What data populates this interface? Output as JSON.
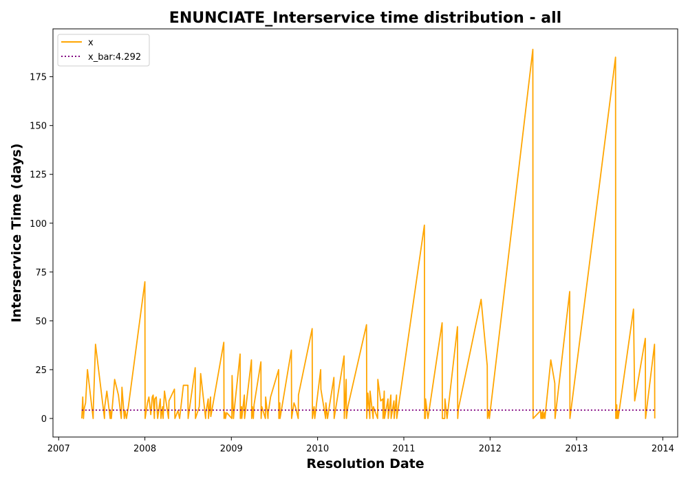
{
  "chart_data": {
    "type": "line",
    "title": "ENUNCIATE_Interservice time distribution - all",
    "xlabel": "Resolution Date",
    "ylabel": "Interservice Time (days)",
    "x_ticks": [
      "2007",
      "2008",
      "2009",
      "2010",
      "2011",
      "2012",
      "2013",
      "2014"
    ],
    "y_ticks": [
      0,
      25,
      50,
      75,
      100,
      125,
      150,
      175
    ],
    "xlim": [
      "2006-12-08",
      "2014-03-05"
    ],
    "ylim": [
      -9.5,
      199.5
    ],
    "legend_position": "upper left",
    "series": [
      {
        "name": "x",
        "color": "#ffa500",
        "style": "solid",
        "x": [
          "2007-04-09",
          "2007-04-13",
          "2007-04-16",
          "2007-04-19",
          "2007-04-25",
          "2007-05-03",
          "2007-05-27",
          "2007-05-28",
          "2007-06-06",
          "2007-07-14",
          "2007-07-15",
          "2007-07-24",
          "2007-08-07",
          "2007-08-08",
          "2007-08-12",
          "2007-08-26",
          "2007-09-11",
          "2007-09-23",
          "2007-09-26",
          "2007-10-06",
          "2007-10-09",
          "2007-10-15",
          "2007-10-23",
          "2008-01-01",
          "2008-01-02",
          "2008-01-12",
          "2008-01-18",
          "2008-01-26",
          "2008-02-01",
          "2008-02-05",
          "2008-02-10",
          "2008-02-12",
          "2008-02-18",
          "2008-02-24",
          "2008-03-06",
          "2008-03-09",
          "2008-03-16",
          "2008-03-18",
          "2008-03-24",
          "2008-04-10",
          "2008-04-12",
          "2008-05-05",
          "2008-05-07",
          "2008-05-20",
          "2008-05-27",
          "2008-06-12",
          "2008-07-01",
          "2008-07-02",
          "2008-08-01",
          "2008-08-02",
          "2008-08-18",
          "2008-08-22",
          "2008-08-24",
          "2008-09-14",
          "2008-09-15",
          "2008-09-25",
          "2008-09-26",
          "2008-10-05",
          "2008-10-06",
          "2008-11-30",
          "2008-12-01",
          "2008-12-05",
          "2008-12-07",
          "2008-12-12",
          "2009-01-03",
          "2009-01-04",
          "2009-01-10",
          "2009-01-12",
          "2009-02-07",
          "2009-02-08",
          "2009-02-13",
          "2009-02-14",
          "2009-02-25",
          "2009-02-26",
          "2009-03-27",
          "2009-03-28",
          "2009-03-31",
          "2009-04-04",
          "2009-04-07",
          "2009-05-06",
          "2009-05-07",
          "2009-05-10",
          "2009-05-25",
          "2009-05-26",
          "2009-06-05",
          "2009-06-06",
          "2009-06-16",
          "2009-07-20",
          "2009-07-21",
          "2009-07-25",
          "2009-07-26",
          "2009-09-12",
          "2009-09-13",
          "2009-09-23",
          "2009-09-29",
          "2009-10-11",
          "2009-10-12",
          "2009-12-09",
          "2009-12-10",
          "2009-12-17",
          "2009-12-20",
          "2010-01-14",
          "2010-01-15",
          "2010-02-04",
          "2010-02-05",
          "2010-02-12",
          "2010-02-17",
          "2010-03-11",
          "2010-03-12",
          "2010-04-23",
          "2010-04-24",
          "2010-05-02",
          "2010-05-03",
          "2010-05-09",
          "2010-07-27",
          "2010-07-28",
          "2010-08-02",
          "2010-08-10",
          "2010-08-11",
          "2010-08-24",
          "2010-08-25",
          "2010-09-12",
          "2010-09-13",
          "2010-09-25",
          "2010-10-04",
          "2010-10-05",
          "2010-10-10",
          "2010-10-11",
          "2010-10-26",
          "2010-10-27",
          "2010-11-07",
          "2010-11-08",
          "2010-11-20",
          "2010-11-21",
          "2010-12-01",
          "2010-12-02",
          "2011-03-29",
          "2011-03-30",
          "2011-04-02",
          "2011-04-03",
          "2011-04-13",
          "2011-06-12",
          "2011-06-13",
          "2011-06-23",
          "2011-06-24",
          "2011-07-03",
          "2011-08-16",
          "2011-08-17",
          "2011-08-20",
          "2011-11-24",
          "2011-12-20",
          "2011-12-21",
          "2011-12-28",
          "2011-12-29",
          "2012-06-30",
          "2012-07-01",
          "2012-08-02",
          "2012-08-03",
          "2012-08-07",
          "2012-08-08",
          "2012-08-12",
          "2012-08-13",
          "2012-08-19",
          "2012-08-20",
          "2012-09-14",
          "2012-10-01",
          "2012-10-02",
          "2012-12-03",
          "2012-12-04",
          "2013-06-15",
          "2013-06-16",
          "2013-06-20",
          "2013-06-21",
          "2013-06-25",
          "2013-06-26",
          "2013-08-30",
          "2013-09-04",
          "2013-10-19",
          "2013-10-20",
          "2013-11-27",
          "2013-11-28"
        ],
        "y": [
          0,
          11,
          0,
          5,
          8,
          25,
          0,
          6,
          38,
          0,
          6,
          14,
          0,
          4,
          0,
          20,
          12,
          0,
          16,
          0,
          4,
          0,
          6,
          70,
          0,
          8,
          11,
          2,
          11,
          12,
          0,
          10,
          11,
          0,
          10,
          0,
          6,
          0,
          14,
          0,
          9,
          15,
          0,
          4,
          0,
          17,
          17,
          0,
          26,
          0,
          6,
          15,
          23,
          0,
          3,
          10,
          0,
          11,
          1,
          39,
          0,
          3,
          0,
          3,
          0,
          22,
          0,
          3,
          33,
          0,
          6,
          0,
          12,
          0,
          30,
          0,
          6,
          0,
          7,
          29,
          0,
          6,
          0,
          11,
          0,
          3,
          11,
          25,
          0,
          8,
          0,
          35,
          0,
          8,
          6,
          0,
          12,
          46,
          0,
          6,
          0,
          25,
          15,
          0,
          8,
          0,
          4,
          21,
          0,
          32,
          0,
          20,
          0,
          6,
          48,
          0,
          13,
          0,
          14,
          0,
          6,
          0,
          20,
          9,
          10,
          0,
          14,
          0,
          10,
          0,
          12,
          0,
          9,
          0,
          12,
          0,
          99,
          0,
          0,
          10,
          0,
          49,
          0,
          0,
          10,
          0,
          47,
          0,
          5,
          61,
          27,
          0,
          4,
          0,
          189,
          0,
          4,
          0,
          3,
          0,
          4,
          0,
          3,
          0,
          30,
          18,
          0,
          65,
          0,
          185,
          0,
          7,
          0,
          4,
          0,
          56,
          9,
          41,
          0,
          38,
          0
        ]
      },
      {
        "name": "x_bar:4.292",
        "color": "#800080",
        "style": "dotted",
        "x": [
          "2007-04-09",
          "2013-11-28"
        ],
        "y": [
          4.292,
          4.292
        ]
      }
    ]
  }
}
